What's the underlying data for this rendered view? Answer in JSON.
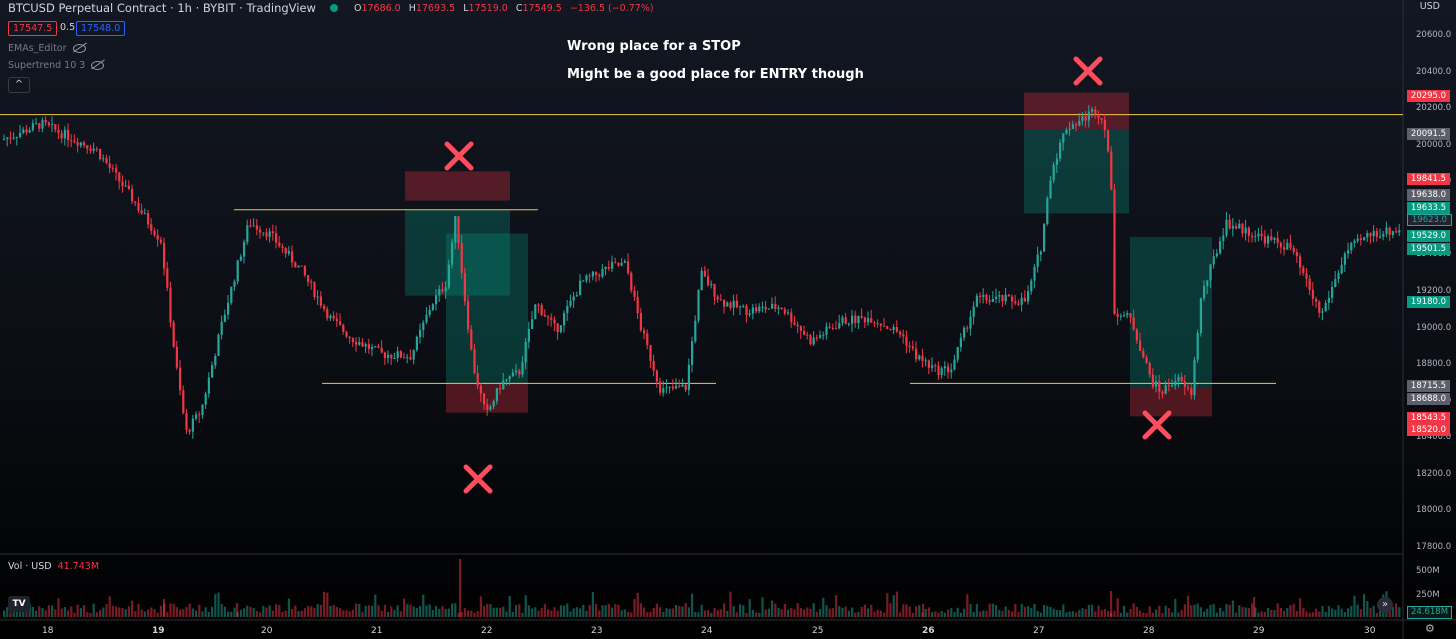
{
  "header": {
    "symbol": "BTCUSD Perpetual Contract · 1h · BYBIT · TradingView",
    "ohlc": {
      "o_label": "O",
      "o": "17686.0",
      "h_label": "H",
      "h": "17693.5",
      "l_label": "L",
      "l": "17519.0",
      "c_label": "C",
      "c": "17549.5",
      "change": "−136.5 (−0.77%)"
    },
    "sell_price": "17547.5",
    "spread": "0.5",
    "buy_price": "17548.0"
  },
  "indicators": [
    {
      "label": "EMAs_Editor",
      "icon": "eye-hidden-icon"
    },
    {
      "label": "Supertrend 10 3",
      "icon": "eye-hidden-icon"
    }
  ],
  "collapse_icon": "chevron-up-icon",
  "annotations": {
    "line1": "Wrong place for a STOP",
    "line2": "Might be a good place for ENTRY though"
  },
  "price_axis": {
    "currency": "USD",
    "ticks": [
      "20600.0",
      "20400.0",
      "20200.0",
      "20000.0",
      "19800.0",
      "19600.0",
      "19400.0",
      "19200.0",
      "19000.0",
      "18800.0",
      "18600.0",
      "18400.0",
      "18200.0",
      "18000.0",
      "17800.0"
    ],
    "tags": [
      {
        "value": "20295.0",
        "color": "red"
      },
      {
        "value": "20091.5",
        "color": "grey"
      },
      {
        "value": "19841.5",
        "color": "red"
      },
      {
        "value": "19638.0",
        "color": "grey"
      },
      {
        "value": "19633.5",
        "color": "green"
      },
      {
        "value": "19623.0",
        "color": "dim"
      },
      {
        "value": "19529.0",
        "color": "green"
      },
      {
        "value": "19501.5",
        "color": "green"
      },
      {
        "value": "19180.0",
        "color": "green"
      },
      {
        "value": "18715.5",
        "color": "grey"
      },
      {
        "value": "18688.0",
        "color": "grey"
      },
      {
        "value": "18543.5",
        "color": "red"
      },
      {
        "value": "18520.0",
        "color": "red"
      }
    ]
  },
  "time_axis": {
    "labels": [
      "18",
      "19",
      "20",
      "21",
      "22",
      "23",
      "24",
      "25",
      "26",
      "27",
      "28",
      "29",
      "30"
    ],
    "bold": [
      "19",
      "26"
    ]
  },
  "volume": {
    "title": "Vol · USD",
    "value": "41.743M",
    "ticks": [
      "500M",
      "250M"
    ],
    "last": "24.618M"
  },
  "chart_data": {
    "type": "candlestick",
    "ylim": [
      17800,
      20600
    ],
    "horizontal_levels": [
      20170,
      19650,
      18700,
      18700
    ],
    "colors": {
      "up": "#26a69a",
      "down": "#f23645",
      "level": "#f0c84a",
      "marker": "#ff4d5e"
    },
    "position_boxes": [
      {
        "stop_from": 19700,
        "stop_to": 19860,
        "target_from": 19180,
        "target_to": 19650
      },
      {
        "stop_from": 18540,
        "stop_to": 18700,
        "target_from": 18700,
        "target_to": 19520
      },
      {
        "stop_from": 20090,
        "stop_to": 20290,
        "target_from": 19630,
        "target_to": 20090
      },
      {
        "stop_from": 18520,
        "stop_to": 18680,
        "target_from": 18680,
        "target_to": 19500
      }
    ]
  }
}
